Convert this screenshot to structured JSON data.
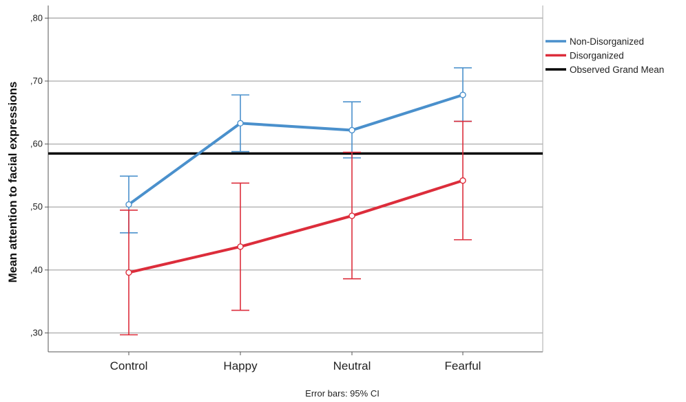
{
  "chart_data": {
    "type": "line",
    "ylabel": "Mean attention to facial expressions",
    "xlabel": "",
    "categories": [
      "Control",
      "Happy",
      "Neutral",
      "Fearful"
    ],
    "ylim": [
      0.27,
      0.82
    ],
    "yticks": [
      0.3,
      0.4,
      0.5,
      0.6,
      0.7,
      0.8
    ],
    "ytick_labels": [
      ",30",
      ",40",
      ",50",
      ",60",
      ",70",
      ",80"
    ],
    "grid": true,
    "legend_position": "top-right",
    "series": [
      {
        "name": "Non-Disorganized",
        "color": "#4a90cc",
        "values": [
          0.504,
          0.633,
          0.622,
          0.678
        ],
        "ci_lower": [
          0.459,
          0.588,
          0.578,
          0.636
        ],
        "ci_upper": [
          0.549,
          0.678,
          0.667,
          0.721
        ]
      },
      {
        "name": "Disorganized",
        "color": "#dc2d3b",
        "values": [
          0.396,
          0.437,
          0.486,
          0.542
        ],
        "ci_lower": [
          0.297,
          0.336,
          0.386,
          0.448
        ],
        "ci_upper": [
          0.495,
          0.538,
          0.587,
          0.636
        ]
      }
    ],
    "reference_line": {
      "name": "Observed Grand Mean",
      "value": 0.585,
      "color": "#000000"
    },
    "footnote": "Error bars: 95% CI"
  }
}
